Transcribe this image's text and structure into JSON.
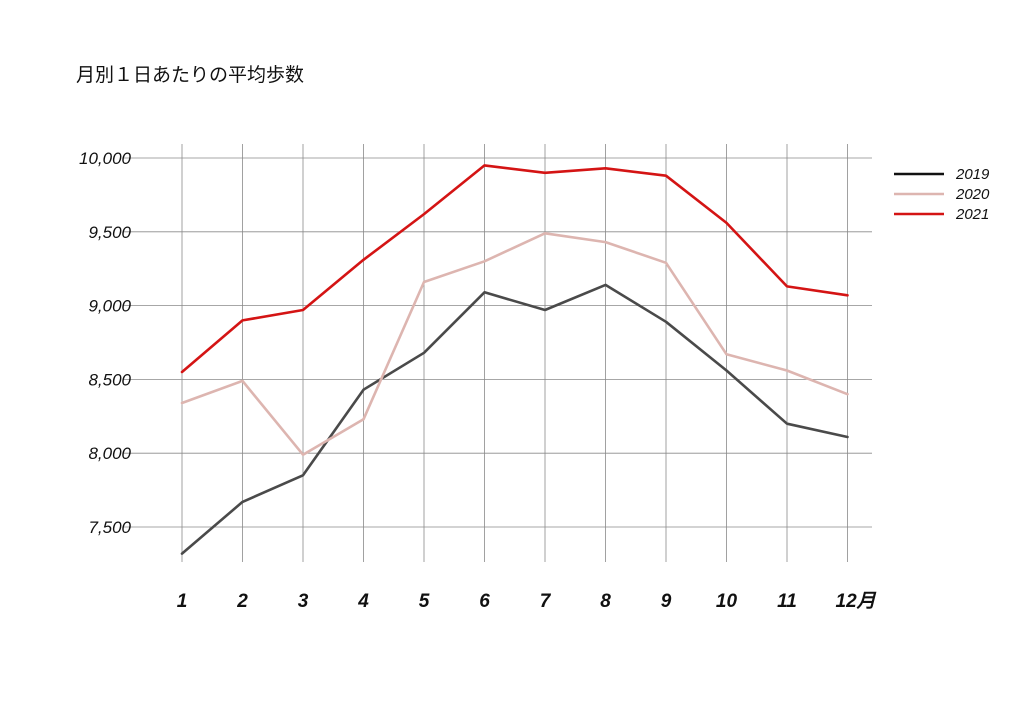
{
  "chart_data": {
    "type": "line",
    "title": "月別１日あたりの平均歩数",
    "xlabel": "",
    "ylabel": "",
    "categories": [
      "1",
      "2",
      "3",
      "4",
      "5",
      "6",
      "7",
      "8",
      "9",
      "10",
      "11",
      "12月"
    ],
    "ylim": [
      7300,
      10100
    ],
    "yticks": [
      7500,
      8000,
      8500,
      9000,
      9500,
      10000
    ],
    "ytick_labels": [
      "7,500",
      "8,000",
      "8,500",
      "9,000",
      "9,500",
      "10,000"
    ],
    "grid": true,
    "legend_position": "right",
    "series": [
      {
        "name": "2019",
        "color": "#4a4a4a",
        "legend_color": "#111111",
        "values": [
          7320,
          7670,
          7850,
          8430,
          8680,
          9090,
          8970,
          9140,
          8890,
          8560,
          8200,
          8110
        ]
      },
      {
        "name": "2020",
        "color": "#ddb5b0",
        "legend_color": "#ddb5b0",
        "values": [
          8340,
          8490,
          7990,
          8230,
          9160,
          9300,
          9490,
          9430,
          9290,
          8670,
          8560,
          8400
        ]
      },
      {
        "name": "2021",
        "color": "#d41414",
        "legend_color": "#d41414",
        "values": [
          8550,
          8900,
          8970,
          9310,
          9620,
          9950,
          9900,
          9930,
          9880,
          9560,
          9130,
          9070
        ]
      }
    ]
  }
}
